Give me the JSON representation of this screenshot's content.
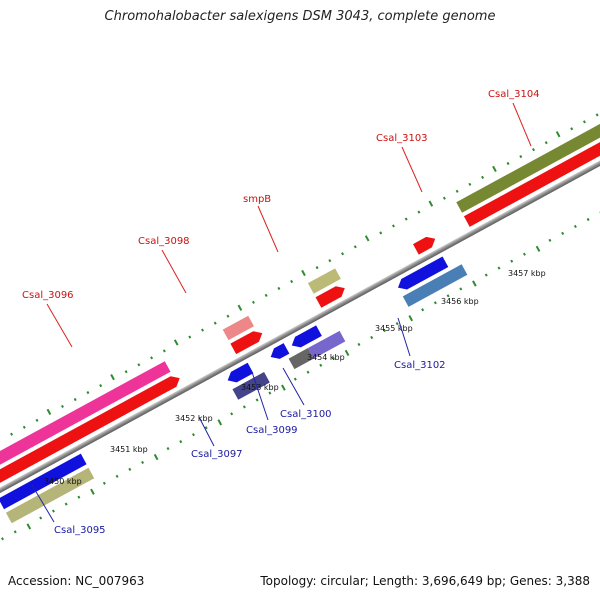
{
  "title": "Chromohalobacter salexigens DSM 3043, complete genome",
  "accession": "Accession: NC_007963",
  "summary": "Topology: circular; Length: 3,696,649 bp; Genes: 3,388",
  "colors": {
    "background": "#ffffff",
    "backbone": "#7a7a7a",
    "tick": "#2e8b2e",
    "forward_label": "#cc1111",
    "reverse_label": "#1a1aa0"
  },
  "kbp_labels": [
    "3450 kbp",
    "3451 kbp",
    "3452 kbp",
    "3453 kbp",
    "3454 kbp",
    "3455 kbp",
    "3456 kbp",
    "3457 kbp"
  ],
  "forward_genes": [
    {
      "label": "Csal_3096",
      "color": "#ee3399"
    },
    {
      "label": "Csal_3098",
      "color": "#ee8888"
    },
    {
      "label": "smpB",
      "color": "#bbbb77"
    },
    {
      "label": "Csal_3103",
      "color": "#ee1111"
    },
    {
      "label": "Csal_3104",
      "color": "#778833"
    }
  ],
  "reverse_genes": [
    {
      "label": "Csal_3095",
      "color": "#b5b57a"
    },
    {
      "label": "Csal_3097",
      "color": "#44448a"
    },
    {
      "label": "Csal_3099",
      "color": "#666666"
    },
    {
      "label": "Csal_3100",
      "color": "#7766cc"
    },
    {
      "label": "Csal_3102",
      "color": "#4a7fb5"
    }
  ]
}
